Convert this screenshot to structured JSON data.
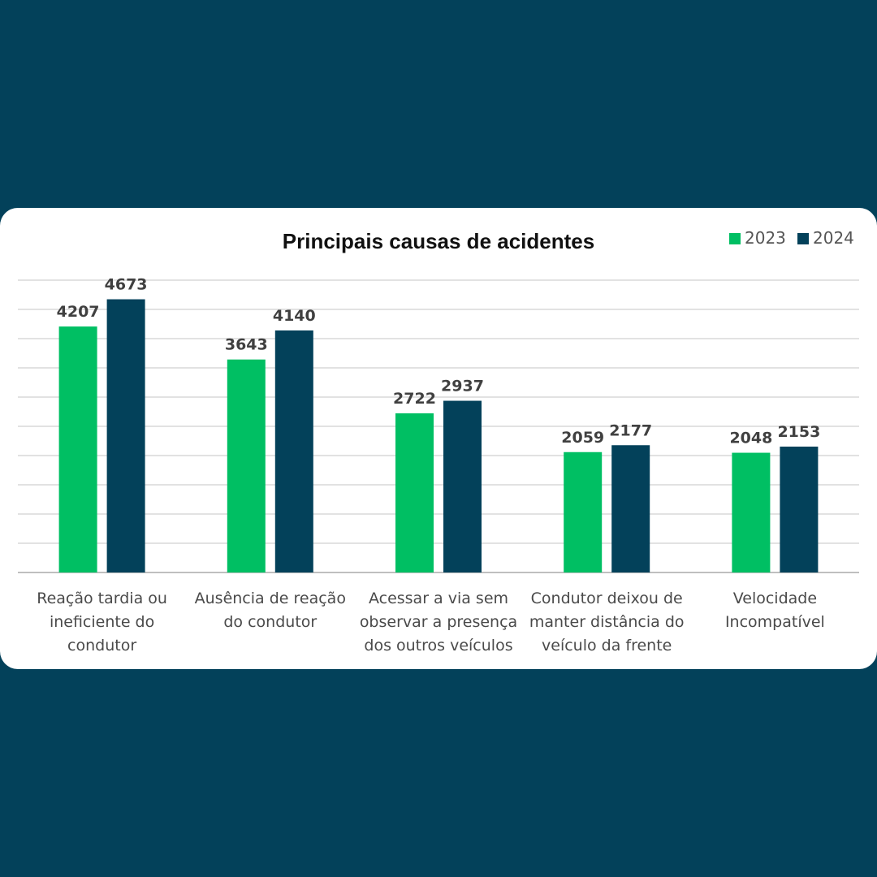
{
  "colors": {
    "background": "#03415a",
    "series_2023": "#00bf63",
    "series_2024": "#03415a",
    "grid": "#d9d9d9"
  },
  "chart_data": {
    "type": "bar",
    "title": "Principais causas de acidentes",
    "categories": [
      [
        "Reação tardia ou",
        "ineficiente do",
        "condutor"
      ],
      [
        "Ausência de reação",
        "do condutor"
      ],
      [
        "Acessar a via sem",
        "observar a presença",
        "dos outros veículos"
      ],
      [
        "Condutor deixou de",
        "manter distância do",
        "veículo da frente"
      ],
      [
        "Velocidade",
        "Incompatível"
      ]
    ],
    "series": [
      {
        "name": "2023",
        "color": "#00bf63",
        "values": [
          4207,
          3643,
          2722,
          2059,
          2048
        ]
      },
      {
        "name": "2024",
        "color": "#03415a",
        "values": [
          4673,
          4140,
          2937,
          2177,
          2153
        ]
      }
    ],
    "ylim": [
      0,
      5000
    ],
    "grid": true,
    "legend": "top-right",
    "xlabel": "",
    "ylabel": ""
  }
}
